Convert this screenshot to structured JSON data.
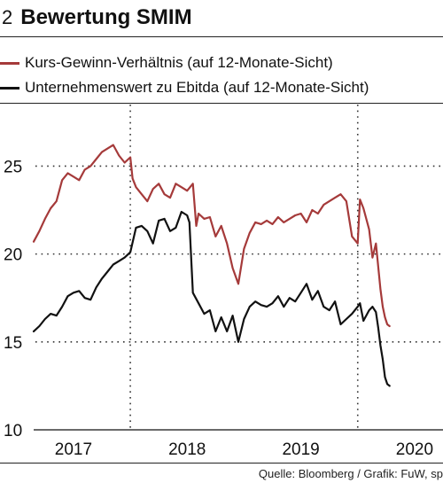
{
  "header": {
    "figure_number": "2",
    "title": "Bewertung SMIM"
  },
  "source": "Quelle: Bloomberg / Grafik: FuW, sp",
  "chart_data": {
    "type": "line",
    "title": "Bewertung SMIM",
    "xlabel": "",
    "ylabel": "",
    "xlim": [
      2016.65,
      2020.25
    ],
    "ylim": [
      10,
      28.5
    ],
    "yticks": [
      10,
      15,
      20,
      25
    ],
    "year_labels": [
      {
        "label": "2017",
        "x": 2017.0
      },
      {
        "label": "2018",
        "x": 2018.0
      },
      {
        "label": "2019",
        "x": 2019.0
      },
      {
        "label": "2020",
        "x": 2020.0
      }
    ],
    "vertical_gridlines": [
      2017.5,
      2019.5
    ],
    "grid": "dotted",
    "legend_position": "top-left",
    "series": [
      {
        "name": "Kurs-Gewinn-Verhältnis (auf 12-Monate-Sicht)",
        "color": "#a53a3a",
        "x": [
          2016.65,
          2016.7,
          2016.75,
          2016.8,
          2016.85,
          2016.9,
          2016.95,
          2017.0,
          2017.05,
          2017.1,
          2017.15,
          2017.2,
          2017.25,
          2017.3,
          2017.35,
          2017.4,
          2017.45,
          2017.5,
          2017.52,
          2017.55,
          2017.6,
          2017.65,
          2017.7,
          2017.75,
          2017.8,
          2017.85,
          2017.9,
          2017.95,
          2018.0,
          2018.05,
          2018.08,
          2018.1,
          2018.15,
          2018.2,
          2018.25,
          2018.3,
          2018.35,
          2018.4,
          2018.45,
          2018.5,
          2018.55,
          2018.6,
          2018.65,
          2018.7,
          2018.75,
          2018.8,
          2018.85,
          2018.9,
          2018.95,
          2019.0,
          2019.05,
          2019.1,
          2019.15,
          2019.2,
          2019.25,
          2019.3,
          2019.35,
          2019.4,
          2019.45,
          2019.5,
          2019.52,
          2019.55,
          2019.6,
          2019.63,
          2019.66,
          2019.7,
          2019.72,
          2019.74,
          2019.76,
          2019.78
        ],
        "values": [
          20.7,
          21.3,
          22.0,
          22.6,
          23.0,
          24.2,
          24.6,
          24.4,
          24.2,
          24.8,
          25.0,
          25.4,
          25.8,
          26.0,
          26.2,
          25.6,
          25.2,
          25.5,
          24.3,
          23.8,
          23.4,
          23.0,
          23.7,
          24.0,
          23.4,
          23.2,
          24.0,
          23.8,
          23.6,
          24.0,
          21.6,
          22.3,
          22.0,
          22.1,
          21.0,
          21.6,
          20.6,
          19.2,
          18.3,
          20.3,
          21.2,
          21.8,
          21.7,
          21.9,
          21.7,
          22.1,
          21.8,
          22.0,
          22.2,
          22.3,
          21.8,
          22.5,
          22.3,
          22.8,
          23.0,
          23.2,
          23.4,
          23.0,
          21.0,
          20.6,
          23.1,
          22.6,
          21.4,
          19.8,
          20.6,
          18.0,
          17.0,
          16.4,
          16.0,
          15.9
        ]
      },
      {
        "name": "Unternehmenswert zu Ebitda (auf 12-Monate-Sicht)",
        "color": "#111111",
        "x": [
          2016.65,
          2016.7,
          2016.75,
          2016.8,
          2016.85,
          2016.9,
          2016.95,
          2017.0,
          2017.05,
          2017.1,
          2017.15,
          2017.2,
          2017.25,
          2017.3,
          2017.35,
          2017.4,
          2017.45,
          2017.5,
          2017.55,
          2017.6,
          2017.65,
          2017.7,
          2017.75,
          2017.8,
          2017.85,
          2017.9,
          2017.95,
          2018.0,
          2018.02,
          2018.05,
          2018.1,
          2018.15,
          2018.2,
          2018.25,
          2018.3,
          2018.35,
          2018.4,
          2018.45,
          2018.5,
          2018.55,
          2018.6,
          2018.65,
          2018.7,
          2018.75,
          2018.8,
          2018.85,
          2018.9,
          2018.95,
          2019.0,
          2019.05,
          2019.1,
          2019.15,
          2019.2,
          2019.25,
          2019.3,
          2019.35,
          2019.4,
          2019.45,
          2019.5,
          2019.52,
          2019.55,
          2019.6,
          2019.63,
          2019.66,
          2019.68,
          2019.7,
          2019.72,
          2019.74,
          2019.76,
          2019.78
        ],
        "values": [
          15.6,
          15.9,
          16.3,
          16.6,
          16.5,
          17.0,
          17.6,
          17.8,
          17.9,
          17.5,
          17.4,
          18.1,
          18.6,
          19.0,
          19.4,
          19.6,
          19.8,
          20.1,
          21.5,
          21.6,
          21.3,
          20.6,
          21.9,
          22.0,
          21.3,
          21.5,
          22.4,
          22.2,
          21.8,
          17.8,
          17.2,
          16.6,
          16.8,
          15.6,
          16.4,
          15.6,
          16.5,
          15.0,
          16.3,
          17.0,
          17.3,
          17.1,
          17.0,
          17.2,
          17.6,
          17.0,
          17.5,
          17.3,
          17.8,
          18.3,
          17.4,
          17.9,
          17.0,
          16.8,
          17.3,
          16.0,
          16.3,
          16.6,
          17.0,
          17.2,
          16.2,
          16.8,
          17.0,
          16.7,
          15.8,
          14.8,
          14.0,
          13.0,
          12.6,
          12.5
        ]
      }
    ]
  }
}
